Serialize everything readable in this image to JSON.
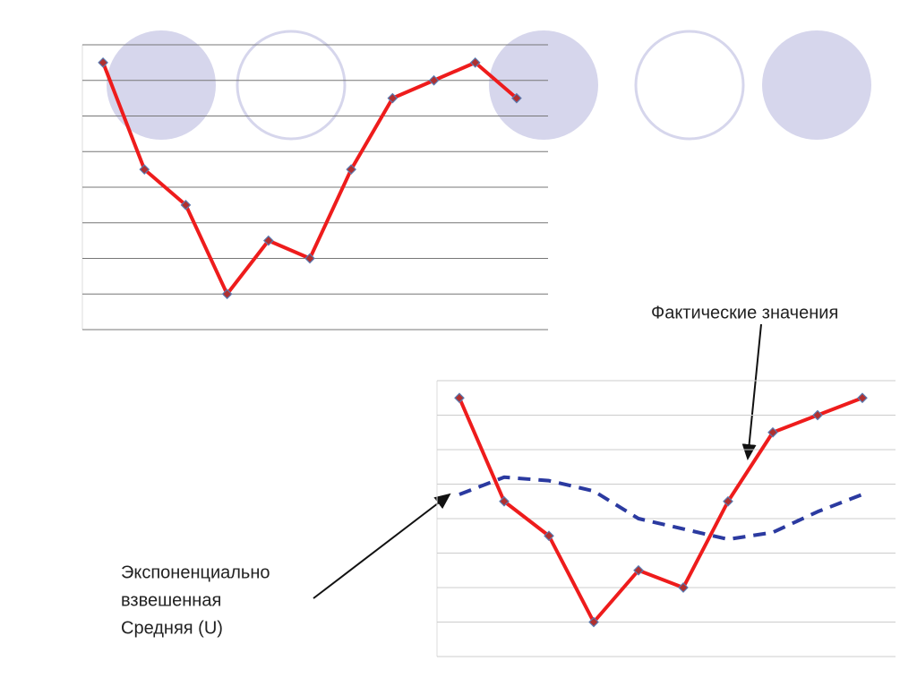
{
  "chart_data": [
    {
      "type": "line",
      "categories": [
        null,
        null,
        null,
        null,
        null,
        null,
        null,
        null,
        null,
        null,
        null
      ],
      "series": [
        {
          "color": "#ee1c1c",
          "values": [
            7.5,
            4.5,
            3.5,
            1,
            2.5,
            2,
            4.5,
            6.5,
            7,
            7.5,
            6.5
          ]
        }
      ],
      "ylim": [
        0,
        8
      ],
      "yticks": [
        0,
        1,
        2,
        3,
        4,
        5,
        6,
        7,
        8
      ],
      "grid": true
    },
    {
      "type": "line",
      "categories": [
        null,
        null,
        null,
        null,
        null,
        null,
        null,
        null,
        null,
        null
      ],
      "series": [
        {
          "color": "#ee1c1c",
          "values": [
            7.5,
            4.5,
            3.5,
            1,
            2.5,
            2,
            4.5,
            6.5,
            7,
            7.5
          ]
        },
        {
          "color": "#2b3aa0",
          "dashed": true,
          "values": [
            4.7,
            5.2,
            5.1,
            4.8,
            4.0,
            3.7,
            3.4,
            3.6,
            4.2,
            4.7
          ]
        }
      ],
      "ylim": [
        0,
        8
      ],
      "yticks": [
        0,
        1,
        2,
        3,
        4,
        5,
        6,
        7,
        8
      ],
      "grid": true,
      "annotations": [
        {
          "lines": [
            "Фактические значения"
          ]
        },
        {
          "lines": [
            "Экспоненциально",
            "взвешенная",
            "Средняя (U)"
          ]
        }
      ]
    }
  ]
}
